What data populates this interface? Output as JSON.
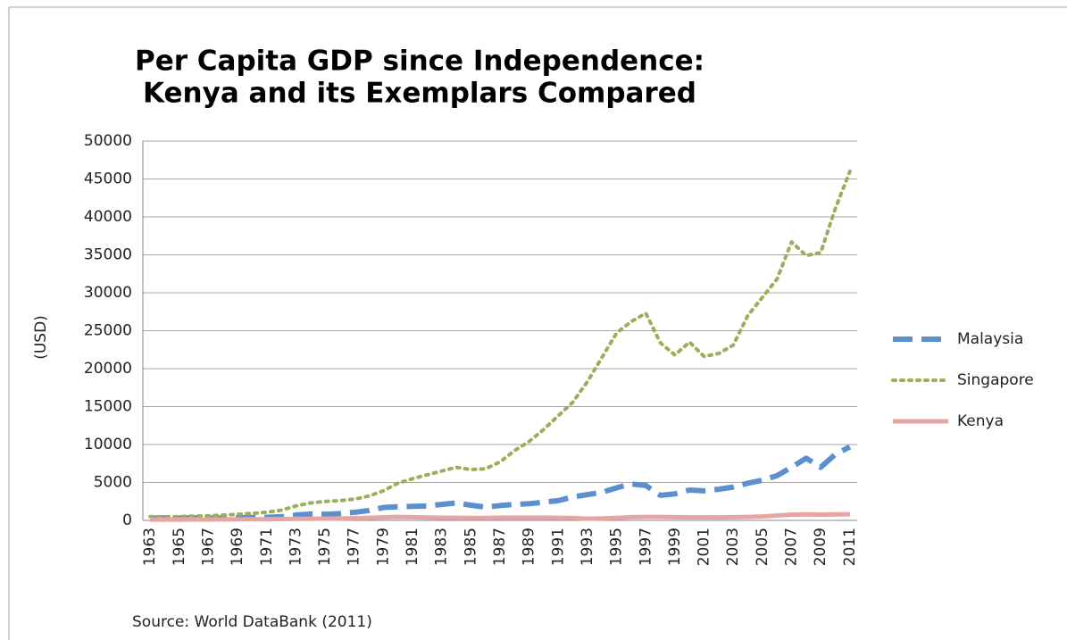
{
  "chart_data": {
    "type": "line",
    "title": [
      "Per Capita GDP since Independence:",
      "Kenya and its Exemplars Compared"
    ],
    "y_label": "(USD)",
    "source": "Source: World DataBank (2011)",
    "categories": [
      "1963",
      null,
      "1965",
      null,
      "1967",
      null,
      "1969",
      null,
      "1971",
      null,
      "1973",
      null,
      "1975",
      null,
      "1977",
      null,
      "1979",
      null,
      "1981",
      null,
      "1983",
      null,
      "1985",
      null,
      "1987",
      null,
      "1989",
      null,
      "1991",
      null,
      "1993",
      null,
      "1995",
      null,
      "1997",
      null,
      "1999",
      null,
      "2001",
      null,
      "2003",
      null,
      "2005",
      null,
      "2007",
      null,
      "2009",
      null,
      "2011"
    ],
    "series": [
      {
        "name": "Malaysia",
        "color": "#5b8fcd",
        "style": "dashed",
        "values": [
          300,
          320,
          330,
          340,
          330,
          340,
          360,
          380,
          410,
          480,
          700,
          840,
          800,
          900,
          1060,
          1300,
          1700,
          1800,
          1850,
          1900,
          2100,
          2300,
          2000,
          1750,
          1950,
          2100,
          2200,
          2400,
          2600,
          3100,
          3400,
          3700,
          4300,
          4800,
          4600,
          3300,
          3500,
          4000,
          3900,
          4100,
          4400,
          4900,
          5300,
          5900,
          7000,
          8200,
          7000,
          8700,
          9700
        ]
      },
      {
        "name": "Singapore",
        "color": "#9bae5a",
        "style": "dotted",
        "values": [
          500,
          450,
          500,
          560,
          600,
          700,
          800,
          925,
          1070,
          1350,
          1900,
          2300,
          2500,
          2600,
          2800,
          3200,
          3900,
          4900,
          5500,
          6000,
          6500,
          7000,
          6700,
          6800,
          7700,
          9200,
          10400,
          12000,
          13800,
          15600,
          18300,
          21500,
          24700,
          26200,
          27300,
          23400,
          21800,
          23500,
          21600,
          22000,
          23100,
          27000,
          29400,
          31800,
          36700,
          34900,
          35300,
          41100,
          46000
        ]
      },
      {
        "name": "Kenya",
        "color": "#e6a5a3",
        "style": "solid",
        "values": [
          100,
          100,
          110,
          120,
          120,
          130,
          140,
          150,
          160,
          180,
          200,
          220,
          230,
          250,
          300,
          340,
          400,
          450,
          430,
          380,
          350,
          340,
          320,
          330,
          370,
          370,
          370,
          370,
          340,
          320,
          220,
          260,
          330,
          420,
          450,
          460,
          420,
          410,
          410,
          400,
          420,
          460,
          520,
          640,
          760,
          790,
          760,
          790,
          810
        ]
      }
    ],
    "ylim": [
      0,
      50000
    ],
    "yticks": [
      0,
      5000,
      10000,
      15000,
      20000,
      25000,
      30000,
      35000,
      40000,
      45000,
      50000
    ],
    "grid": true,
    "legend": "right"
  }
}
